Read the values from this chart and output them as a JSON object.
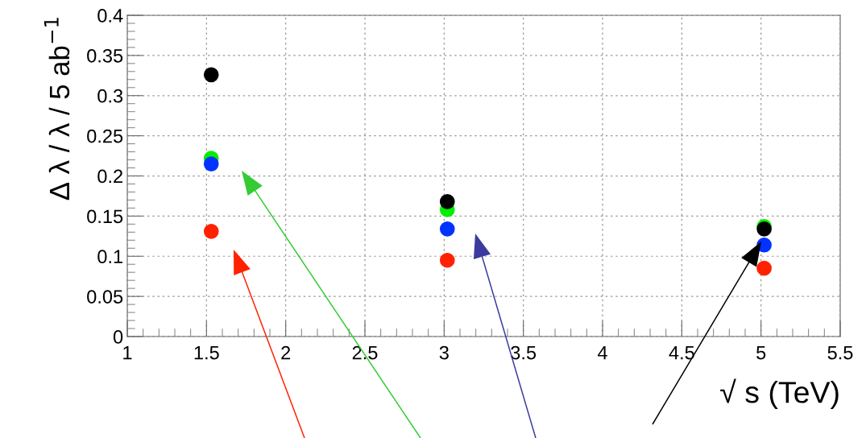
{
  "chart_data": {
    "type": "scatter",
    "xlabel": "√ s (TeV)",
    "ylabel": "Δ λ / λ / 5 ab$^{−1}$",
    "xlim": [
      1,
      5.5
    ],
    "xticks": [
      1,
      1.5,
      2,
      2.5,
      3,
      3.5,
      4,
      4.5,
      5,
      5.5
    ],
    "ylim": [
      0,
      0.4
    ],
    "yticks": [
      0,
      0.05,
      0.1,
      0.15,
      0.2,
      0.25,
      0.3,
      0.35,
      0.4
    ],
    "grid": true,
    "marker": "circle",
    "legend": false,
    "series": [
      {
        "color": "#ff2200",
        "x": [
          1.53,
          3.02,
          5.02
        ],
        "values": [
          0.131,
          0.095,
          0.085
        ]
      },
      {
        "color": "#00ee00",
        "x": [
          1.53,
          3.02,
          5.02
        ],
        "values": [
          0.222,
          0.158,
          0.137
        ]
      },
      {
        "color": "#0033ff",
        "x": [
          1.53,
          3.02,
          5.02
        ],
        "values": [
          0.215,
          0.134,
          0.114
        ]
      },
      {
        "color": "#000000",
        "x": [
          1.53,
          3.02,
          5.02
        ],
        "values": [
          0.326,
          0.168,
          0.134
        ]
      }
    ]
  }
}
